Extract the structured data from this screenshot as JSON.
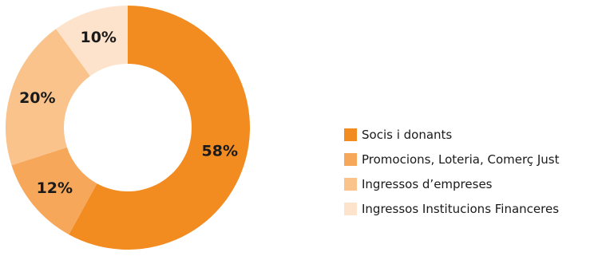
{
  "chart_data": {
    "type": "pie",
    "variant": "donut",
    "categories": [
      "Socis i donants",
      "Promocions, Loteria, Comerç Just",
      "Ingressos d’empreses",
      "Ingressos Institucions Financeres"
    ],
    "values": [
      58,
      12,
      20,
      10
    ],
    "value_labels": [
      "58%",
      "12%",
      "20%",
      "10%"
    ],
    "colors": [
      "#f28b20",
      "#f6a75a",
      "#f9c38b",
      "#fde3cb"
    ],
    "start_angle_deg": 0,
    "direction": "clockwise",
    "legend_position": "right"
  }
}
